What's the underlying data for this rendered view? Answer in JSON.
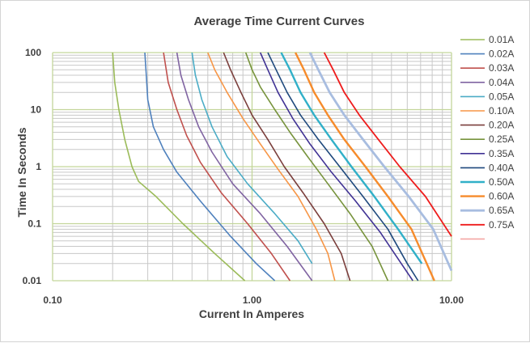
{
  "chart_data": {
    "type": "line",
    "title": "Average Time Current Curves",
    "xlabel": "Current In Amperes",
    "ylabel": "Time In Seconds",
    "xscale": "log",
    "yscale": "log",
    "xlim": [
      0.1,
      10
    ],
    "ylim": [
      0.01,
      100
    ],
    "x_ticks": [
      "0.10",
      "1.00",
      "10.00"
    ],
    "y_ticks": [
      "100",
      "10",
      "1",
      "0.1",
      "0.01"
    ],
    "grid": true,
    "legend_position": "right",
    "series": [
      {
        "name": "0.01A",
        "color": "#9bbb59",
        "width": 1.6,
        "points": [
          [
            0.2,
            100
          ],
          [
            0.205,
            30
          ],
          [
            0.215,
            10
          ],
          [
            0.23,
            3
          ],
          [
            0.25,
            1
          ],
          [
            0.27,
            0.55
          ],
          [
            0.33,
            0.3
          ],
          [
            0.45,
            0.1
          ],
          [
            0.65,
            0.03
          ],
          [
            0.92,
            0.01
          ]
        ]
      },
      {
        "name": "0.02A",
        "color": "#4f81bd",
        "width": 1.6,
        "points": [
          [
            0.29,
            100
          ],
          [
            0.295,
            40
          ],
          [
            0.3,
            15
          ],
          [
            0.32,
            5
          ],
          [
            0.36,
            2
          ],
          [
            0.42,
            0.8
          ],
          [
            0.55,
            0.25
          ],
          [
            0.78,
            0.06
          ],
          [
            1.05,
            0.02
          ],
          [
            1.3,
            0.01
          ]
        ]
      },
      {
        "name": "0.03A",
        "color": "#c0504d",
        "width": 1.6,
        "points": [
          [
            0.36,
            100
          ],
          [
            0.38,
            30
          ],
          [
            0.42,
            10
          ],
          [
            0.47,
            3.5
          ],
          [
            0.55,
            1.2
          ],
          [
            0.7,
            0.35
          ],
          [
            0.95,
            0.1
          ],
          [
            1.25,
            0.03
          ],
          [
            1.55,
            0.01
          ]
        ]
      },
      {
        "name": "0.04A",
        "color": "#8064a2",
        "width": 1.6,
        "points": [
          [
            0.42,
            100
          ],
          [
            0.44,
            40
          ],
          [
            0.48,
            15
          ],
          [
            0.54,
            5
          ],
          [
            0.63,
            1.8
          ],
          [
            0.8,
            0.5
          ],
          [
            1.1,
            0.15
          ],
          [
            1.5,
            0.04
          ],
          [
            2.0,
            0.01
          ]
        ]
      },
      {
        "name": "0.05A",
        "color": "#4bacc6",
        "width": 1.6,
        "points": [
          [
            0.5,
            100
          ],
          [
            0.52,
            40
          ],
          [
            0.56,
            15
          ],
          [
            0.63,
            5
          ],
          [
            0.75,
            1.5
          ],
          [
            0.95,
            0.5
          ],
          [
            1.3,
            0.15
          ],
          [
            1.7,
            0.05
          ],
          [
            2.0,
            0.02
          ]
        ]
      },
      {
        "name": "0.10A",
        "color": "#f79646",
        "width": 1.6,
        "points": [
          [
            0.6,
            100
          ],
          [
            0.65,
            50
          ],
          [
            0.75,
            20
          ],
          [
            0.9,
            7
          ],
          [
            1.1,
            2.5
          ],
          [
            1.35,
            0.9
          ],
          [
            1.7,
            0.3
          ],
          [
            2.1,
            0.08
          ],
          [
            2.4,
            0.03
          ],
          [
            2.6,
            0.01
          ]
        ]
      },
      {
        "name": "0.20A",
        "color": "#7b3f3c",
        "width": 1.6,
        "points": [
          [
            0.72,
            100
          ],
          [
            0.78,
            50
          ],
          [
            0.88,
            20
          ],
          [
            1.0,
            8
          ],
          [
            1.2,
            3
          ],
          [
            1.45,
            1
          ],
          [
            1.8,
            0.35
          ],
          [
            2.3,
            0.1
          ],
          [
            2.8,
            0.03
          ],
          [
            3.1,
            0.01
          ]
        ]
      },
      {
        "name": "0.25A",
        "color": "#77933c",
        "width": 1.6,
        "points": [
          [
            0.93,
            100
          ],
          [
            1.0,
            50
          ],
          [
            1.1,
            25
          ],
          [
            1.3,
            10
          ],
          [
            1.55,
            4
          ],
          [
            1.9,
            1.5
          ],
          [
            2.4,
            0.5
          ],
          [
            3.1,
            0.15
          ],
          [
            4.0,
            0.04
          ],
          [
            4.8,
            0.01
          ]
        ]
      },
      {
        "name": "0.35A",
        "color": "#403294",
        "width": 1.6,
        "points": [
          [
            1.1,
            100
          ],
          [
            1.2,
            50
          ],
          [
            1.35,
            20
          ],
          [
            1.6,
            7
          ],
          [
            1.95,
            2.5
          ],
          [
            2.5,
            0.8
          ],
          [
            3.3,
            0.25
          ],
          [
            4.4,
            0.07
          ],
          [
            5.6,
            0.02
          ],
          [
            6.4,
            0.01
          ]
        ]
      },
      {
        "name": "0.40A",
        "color": "#1f497d",
        "width": 1.6,
        "points": [
          [
            1.2,
            100
          ],
          [
            1.32,
            50
          ],
          [
            1.5,
            20
          ],
          [
            1.75,
            8
          ],
          [
            2.15,
            3
          ],
          [
            2.75,
            1
          ],
          [
            3.6,
            0.3
          ],
          [
            4.8,
            0.08
          ],
          [
            6.0,
            0.02
          ],
          [
            6.8,
            0.01
          ]
        ]
      },
      {
        "name": "0.50A",
        "color": "#31b0c8",
        "width": 2.4,
        "points": [
          [
            1.4,
            100
          ],
          [
            1.55,
            50
          ],
          [
            1.75,
            20
          ],
          [
            2.05,
            8
          ],
          [
            2.5,
            3
          ],
          [
            3.15,
            1
          ],
          [
            4.1,
            0.3
          ],
          [
            5.4,
            0.08
          ],
          [
            7.1,
            0.02
          ]
        ]
      },
      {
        "name": "0.60A",
        "color": "#f68b2b",
        "width": 2.4,
        "points": [
          [
            1.65,
            100
          ],
          [
            1.82,
            50
          ],
          [
            2.05,
            20
          ],
          [
            2.4,
            8
          ],
          [
            2.9,
            3
          ],
          [
            3.7,
            1
          ],
          [
            4.8,
            0.3
          ],
          [
            6.3,
            0.08
          ],
          [
            8.2,
            0.01
          ]
        ]
      },
      {
        "name": "0.65A",
        "color": "#a8bde0",
        "width": 2.8,
        "points": [
          [
            1.95,
            100
          ],
          [
            2.15,
            50
          ],
          [
            2.45,
            20
          ],
          [
            2.9,
            8
          ],
          [
            3.6,
            3
          ],
          [
            4.6,
            1
          ],
          [
            6.1,
            0.3
          ],
          [
            8.1,
            0.08
          ],
          [
            10.0,
            0.015
          ]
        ]
      },
      {
        "name": "0.75A",
        "color": "#ee1c1c",
        "width": 1.8,
        "points": [
          [
            2.3,
            100
          ],
          [
            2.55,
            50
          ],
          [
            2.9,
            20
          ],
          [
            3.45,
            8
          ],
          [
            4.3,
            3
          ],
          [
            5.5,
            1
          ],
          [
            7.4,
            0.3
          ],
          [
            10.0,
            0.06
          ]
        ]
      }
    ],
    "extra_legend_swatch_color": "#f4a6a3"
  }
}
